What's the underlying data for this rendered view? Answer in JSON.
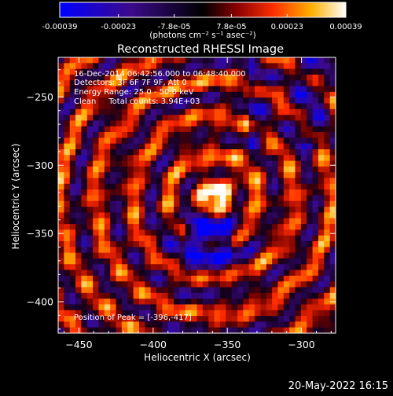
{
  "colorbar": {
    "tick_labels": [
      "-0.00039",
      "-0.00023",
      "-7.8e-05",
      "7.8e-05",
      "0.00023",
      "0.00039"
    ],
    "ticks": [
      -0.00039,
      -0.00023,
      -7.8e-05,
      7.8e-05,
      0.00023,
      0.00039
    ],
    "range": [
      -0.00039,
      0.00039
    ],
    "units_label": "(photons cm⁻² s⁻¹ asec⁻²)",
    "colors": [
      "#0000ff",
      "#3b0a8a",
      "#000000",
      "#8a0000",
      "#ff3000",
      "#ffb000",
      "#ffffff"
    ]
  },
  "chart_data": {
    "type": "heatmap",
    "title": "Reconstructed RHESSI Image",
    "xlabel": "Heliocentric X (arcsec)",
    "ylabel": "Heliocentric Y (arcsec)",
    "xlim": [
      -464,
      -277
    ],
    "ylim": [
      -423,
      -221
    ],
    "x_ticks": [
      -450,
      -400,
      -350,
      -300
    ],
    "y_ticks": [
      -250,
      -300,
      -350,
      -400
    ],
    "annotations": [
      "16-Dec-2014 06:42:56.000 to 06:48:40.000",
      "Detectors: 3F 6F 7F 9F, Att 0",
      "Energy Range: 25.0 - 50.0 keV",
      "Clean     Total counts: 3.94E+03"
    ],
    "peak_label": "Position of Peak = [-396,-417]",
    "peak": [
      -396,
      -417
    ]
  },
  "footer": {
    "timestamp": "20-May-2022 16:15"
  }
}
